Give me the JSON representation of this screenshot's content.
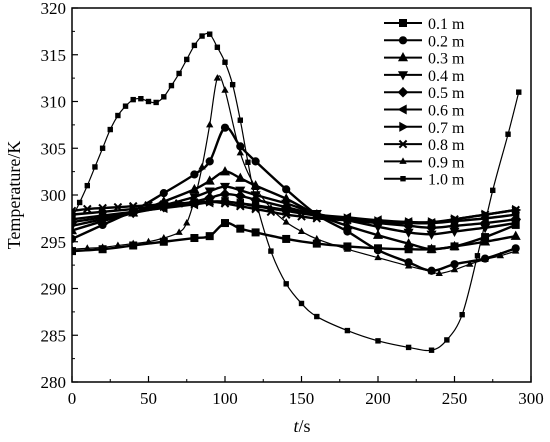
{
  "chart_data": {
    "type": "line",
    "title": "",
    "xlabel_italic": "t",
    "xlabel_unit": "/s",
    "ylabel": "Temperature/K",
    "xlim": [
      0,
      300
    ],
    "ylim": [
      280,
      320
    ],
    "xticks": [
      "0",
      "50",
      "100",
      "150",
      "200",
      "250",
      "300"
    ],
    "yticks": [
      "280",
      "285",
      "290",
      "295",
      "300",
      "305",
      "310",
      "315",
      "320"
    ],
    "grid": false,
    "legend_position": "top-right",
    "series": [
      {
        "name": "0.1 m",
        "marker": "square",
        "x": [
          0,
          20,
          40,
          60,
          80,
          90,
          100,
          110,
          120,
          140,
          160,
          180,
          200,
          220,
          235,
          250,
          270,
          290
        ],
        "y": [
          294,
          294.2,
          294.6,
          295,
          295.4,
          295.6,
          297,
          296.4,
          296,
          295.3,
          294.8,
          294.5,
          294.3,
          294.2,
          294.2,
          294.5,
          295.5,
          296.8
        ]
      },
      {
        "name": "0.2 m",
        "marker": "circle",
        "x": [
          0,
          20,
          40,
          60,
          80,
          90,
          100,
          110,
          120,
          140,
          160,
          180,
          200,
          220,
          235,
          250,
          270,
          290
        ],
        "y": [
          295.3,
          296.8,
          298.3,
          300.2,
          302.2,
          303.6,
          307.2,
          305.2,
          303.6,
          300.6,
          297.9,
          296.1,
          294.1,
          292.8,
          291.9,
          292.6,
          293.2,
          294.3
        ]
      },
      {
        "name": "0.3 m",
        "marker": "triangle-up",
        "x": [
          0,
          20,
          40,
          60,
          80,
          90,
          100,
          110,
          120,
          140,
          160,
          180,
          200,
          220,
          235,
          250,
          270,
          290
        ],
        "y": [
          296.2,
          297.2,
          298.1,
          299.3,
          300.6,
          301.5,
          302.5,
          301.8,
          301,
          299.6,
          297.9,
          296.7,
          295.7,
          294.8,
          294.2,
          294.5,
          295,
          295.6
        ]
      },
      {
        "name": "0.4 m",
        "marker": "triangle-down",
        "x": [
          0,
          20,
          40,
          60,
          80,
          90,
          100,
          110,
          120,
          140,
          160,
          180,
          200,
          220,
          235,
          250,
          270,
          290
        ],
        "y": [
          296.7,
          297.4,
          298.1,
          298.9,
          299.8,
          300.4,
          300.9,
          300.5,
          300,
          299.1,
          298,
          297.3,
          296.6,
          296,
          295.8,
          296.1,
          296.5,
          297
        ]
      },
      {
        "name": "0.5 m",
        "marker": "diamond",
        "x": [
          0,
          20,
          40,
          60,
          80,
          90,
          100,
          110,
          120,
          140,
          160,
          180,
          200,
          220,
          235,
          250,
          270,
          290
        ],
        "y": [
          297.1,
          297.6,
          298.1,
          298.7,
          299.3,
          299.7,
          300.1,
          299.9,
          299.5,
          298.7,
          297.9,
          297.3,
          297,
          296.7,
          296.5,
          296.7,
          297,
          297.4
        ]
      },
      {
        "name": "0.6 m",
        "marker": "triangle-left",
        "x": [
          0,
          20,
          40,
          60,
          80,
          90,
          100,
          110,
          120,
          140,
          160,
          180,
          200,
          220,
          235,
          250,
          270,
          290
        ],
        "y": [
          297.4,
          297.8,
          298.2,
          298.6,
          299,
          299.2,
          299.3,
          299.1,
          298.9,
          298.4,
          297.9,
          297.6,
          297.3,
          297.1,
          297,
          297.2,
          297.5,
          297.9
        ]
      },
      {
        "name": "0.7 m",
        "marker": "triangle-right",
        "x": [
          0,
          20,
          40,
          60,
          80,
          90,
          100,
          110,
          120,
          140,
          160,
          180,
          200,
          220,
          235,
          250,
          270,
          290
        ],
        "y": [
          297.9,
          298.2,
          298.5,
          298.8,
          299.1,
          299.3,
          299.3,
          299.1,
          298.8,
          298.3,
          297.8,
          297.5,
          297.2,
          297.1,
          297.1,
          297.4,
          297.9,
          298.4
        ]
      },
      {
        "name": "0.8 m",
        "marker": "x-cross",
        "x": [
          0,
          10,
          20,
          30,
          40,
          50,
          60,
          70,
          80,
          90,
          100,
          110,
          120,
          130,
          140,
          150,
          160,
          180,
          200,
          220,
          235,
          250,
          270,
          290
        ],
        "y": [
          298.3,
          298.5,
          298.6,
          298.7,
          298.8,
          298.9,
          299,
          299.1,
          299.2,
          299.3,
          299.1,
          298.8,
          298.5,
          298.2,
          297.9,
          297.7,
          297.5,
          297.3,
          297.1,
          297,
          297,
          297.4,
          297.9,
          298.4
        ]
      },
      {
        "name": "0.9 m",
        "marker": "small-triangle",
        "x": [
          0,
          10,
          20,
          30,
          40,
          50,
          60,
          70,
          75,
          80,
          85,
          90,
          95,
          100,
          110,
          120,
          130,
          140,
          150,
          160,
          180,
          200,
          220,
          235,
          240,
          250,
          260,
          270,
          280,
          290
        ],
        "y": [
          294.2,
          294.3,
          294.4,
          294.6,
          294.8,
          295,
          295.4,
          296,
          297,
          299.5,
          303,
          307.5,
          312.5,
          311.2,
          304.5,
          300.8,
          298.6,
          297.1,
          296.1,
          295.3,
          294.2,
          293.3,
          292.4,
          291.8,
          291.6,
          292,
          292.6,
          293.1,
          293.5,
          294
        ]
      },
      {
        "name": "1.0 m",
        "marker": "small-square",
        "x": [
          0,
          5,
          10,
          15,
          20,
          25,
          30,
          35,
          40,
          45,
          50,
          55,
          60,
          65,
          70,
          75,
          80,
          85,
          90,
          95,
          100,
          105,
          110,
          115,
          120,
          130,
          140,
          150,
          160,
          180,
          200,
          220,
          235,
          245,
          255,
          265,
          275,
          285,
          292
        ],
        "y": [
          297.5,
          299.2,
          301,
          303,
          305,
          307,
          308.5,
          309.5,
          310.2,
          310.3,
          310,
          309.9,
          310.5,
          311.7,
          313,
          314.5,
          316,
          317,
          317.2,
          315.8,
          314.2,
          311.8,
          308,
          303.5,
          299.5,
          294,
          290.5,
          288.4,
          287,
          285.5,
          284.4,
          283.7,
          283.4,
          284.5,
          287.2,
          293.5,
          300.5,
          306.5,
          311
        ]
      }
    ],
    "legend_order_note": ""
  }
}
